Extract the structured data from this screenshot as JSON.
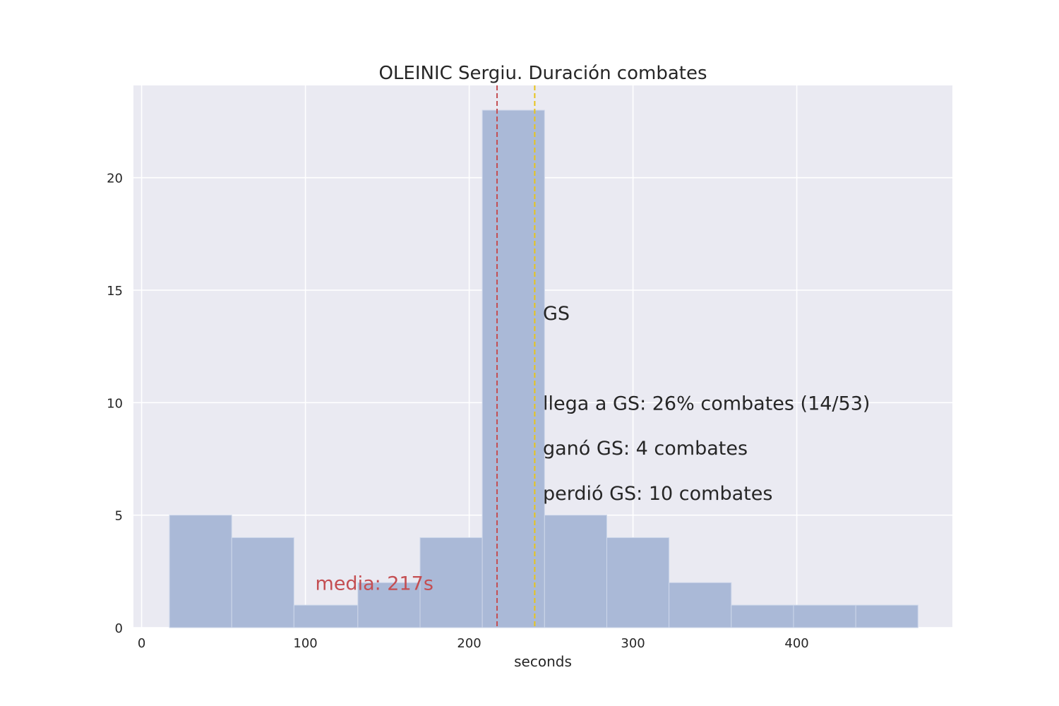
{
  "chart_data": {
    "type": "bar",
    "title": "OLEINIC Sergiu. Duración combates",
    "xlabel": "seconds",
    "ylabel": "",
    "xlim": [
      -5,
      495
    ],
    "ylim": [
      0,
      24.1
    ],
    "xticks": [
      0,
      100,
      200,
      300,
      400
    ],
    "yticks": [
      0,
      5,
      10,
      15,
      20
    ],
    "grid": true,
    "bins": [
      {
        "x0": 17,
        "x1": 55,
        "count": 5
      },
      {
        "x0": 55,
        "x1": 93,
        "count": 4
      },
      {
        "x0": 93,
        "x1": 132,
        "count": 1
      },
      {
        "x0": 132,
        "x1": 170,
        "count": 2
      },
      {
        "x0": 170,
        "x1": 208,
        "count": 4
      },
      {
        "x0": 208,
        "x1": 246,
        "count": 23
      },
      {
        "x0": 246,
        "x1": 284,
        "count": 5
      },
      {
        "x0": 284,
        "x1": 322,
        "count": 4
      },
      {
        "x0": 322,
        "x1": 360,
        "count": 2
      },
      {
        "x0": 360,
        "x1": 398,
        "count": 1
      },
      {
        "x0": 398,
        "x1": 436,
        "count": 1
      },
      {
        "x0": 436,
        "x1": 474,
        "count": 1
      }
    ],
    "mean_line": {
      "x": 217,
      "label": "media: 217s",
      "label_x": 106,
      "label_y": 2.0
    },
    "gs_line": {
      "x": 240
    },
    "annotations": [
      {
        "text": "GS",
        "x": 245,
        "y": 14.0
      },
      {
        "text": "llega a GS: 26% combates (14/53)",
        "x": 245,
        "y": 10.0
      },
      {
        "text": "ganó GS: 4 combates",
        "x": 245,
        "y": 8.0
      },
      {
        "text": "perdió GS: 10 combates",
        "x": 245,
        "y": 6.0
      }
    ],
    "colors": {
      "bar": "#aab9d7",
      "bar_edge": "#ced7ea",
      "background": "#eaeaf2",
      "grid": "#ffffff",
      "mean": "#c44e52",
      "gs": "#e8c41a"
    }
  }
}
